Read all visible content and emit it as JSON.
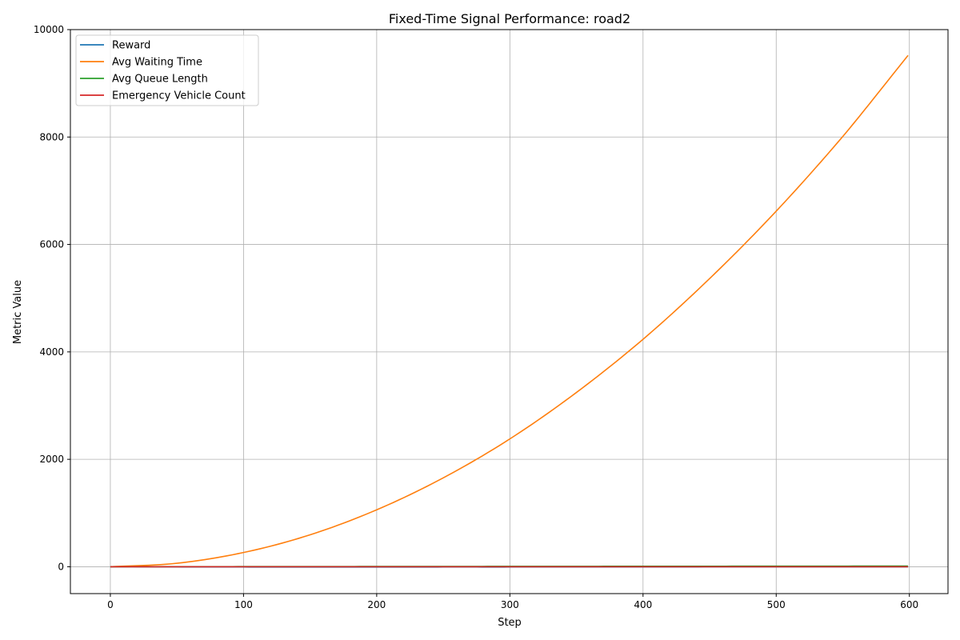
{
  "chart_data": {
    "type": "line",
    "title": "Fixed-Time Signal Performance: road2",
    "xlabel": "Step",
    "ylabel": "Metric Value",
    "xlim": [
      -30,
      629
    ],
    "ylim": [
      -500,
      10000
    ],
    "xticks": [
      0,
      100,
      200,
      300,
      400,
      500,
      600
    ],
    "yticks": [
      0,
      2000,
      4000,
      6000,
      8000,
      10000
    ],
    "grid": true,
    "legend_position": "upper-left",
    "x": [
      0,
      50,
      100,
      150,
      200,
      250,
      300,
      350,
      400,
      450,
      500,
      550,
      599
    ],
    "series": [
      {
        "name": "Reward",
        "color": "#1f77b4",
        "values": [
          0,
          -3,
          -5,
          -6,
          -6,
          -5,
          -5,
          -4,
          -4,
          -3,
          -3,
          -2,
          -2
        ]
      },
      {
        "name": "Avg Waiting Time",
        "color": "#ff7f0e",
        "values": [
          0,
          65,
          265,
          595,
          1060,
          1655,
          2380,
          3245,
          4235,
          5365,
          6620,
          8010,
          9520
        ]
      },
      {
        "name": "Avg Queue Length",
        "color": "#2ca02c",
        "values": [
          0,
          2,
          3,
          4,
          5,
          6,
          7,
          8,
          9,
          10,
          11,
          12,
          13
        ]
      },
      {
        "name": "Emergency Vehicle Count",
        "color": "#d62728",
        "values": [
          0,
          0,
          0,
          0,
          0,
          0,
          0,
          0,
          0,
          0,
          0,
          0,
          0
        ]
      }
    ]
  }
}
